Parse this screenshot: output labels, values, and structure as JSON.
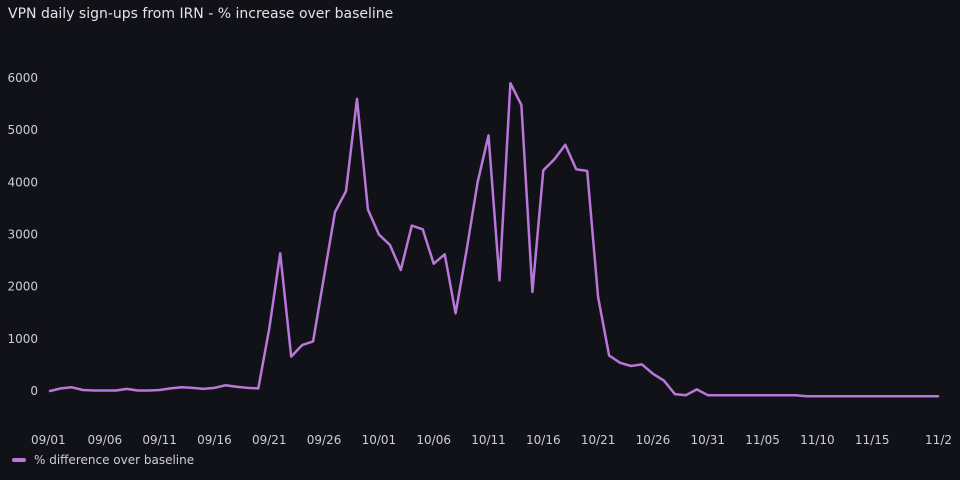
{
  "panel": {
    "title": "VPN daily sign-ups from IRN - % increase over baseline"
  },
  "colors": {
    "background": "#111217",
    "series": "#b877d9",
    "text": "#ccccdc"
  },
  "chart_data": {
    "type": "line",
    "title": "VPN daily sign-ups from IRN - % increase over baseline",
    "xlabel": "",
    "ylabel": "",
    "grid": false,
    "legend_position": "bottom-left",
    "ylim": [
      -100,
      6500
    ],
    "yticks": [
      0,
      1000,
      2000,
      3000,
      4000,
      5000,
      6000
    ],
    "xtick_labels": [
      "09/01",
      "09/06",
      "09/11",
      "09/16",
      "09/21",
      "09/26",
      "10/01",
      "10/06",
      "10/11",
      "10/16",
      "10/21",
      "10/26",
      "10/31",
      "11/05",
      "11/10",
      "11/15",
      "11/2"
    ],
    "x": [
      "09/01",
      "09/02",
      "09/03",
      "09/04",
      "09/05",
      "09/06",
      "09/07",
      "09/08",
      "09/09",
      "09/10",
      "09/11",
      "09/12",
      "09/13",
      "09/14",
      "09/15",
      "09/16",
      "09/17",
      "09/18",
      "09/19",
      "09/20",
      "09/21",
      "09/22",
      "09/23",
      "09/24",
      "09/25",
      "09/26",
      "09/27",
      "09/28",
      "09/29",
      "09/30",
      "10/01",
      "10/02",
      "10/03",
      "10/04",
      "10/05",
      "10/06",
      "10/07",
      "10/08",
      "10/09",
      "10/10",
      "10/11",
      "10/12",
      "10/13",
      "10/14",
      "10/15",
      "10/16",
      "10/17",
      "10/18",
      "10/19",
      "10/20",
      "10/21",
      "10/22",
      "10/23",
      "10/24",
      "10/25",
      "10/26",
      "10/27",
      "10/28",
      "10/29",
      "10/30",
      "10/31",
      "11/01",
      "11/02",
      "11/03",
      "11/04",
      "11/05",
      "11/06",
      "11/07",
      "11/08",
      "11/09",
      "11/10",
      "11/11",
      "11/12",
      "11/13",
      "11/14",
      "11/15",
      "11/16",
      "11/17",
      "11/18",
      "11/19",
      "11/20",
      "11/21"
    ],
    "series": [
      {
        "name": "% difference over baseline",
        "values": [
          0,
          50,
          70,
          20,
          10,
          10,
          10,
          40,
          10,
          10,
          20,
          50,
          70,
          60,
          40,
          60,
          110,
          80,
          60,
          50,
          1200,
          2640,
          660,
          880,
          950,
          2200,
          3430,
          3830,
          5600,
          3480,
          3000,
          2800,
          2320,
          3170,
          3100,
          2440,
          2620,
          1490,
          2700,
          4000,
          4900,
          2120,
          5900,
          5480,
          1900,
          4230,
          4440,
          4720,
          4250,
          4220,
          1800,
          680,
          540,
          480,
          510,
          330,
          200,
          -60,
          -80,
          30,
          -80,
          -80,
          -80,
          -80,
          -80,
          -80,
          -80,
          -80,
          -80,
          -100,
          -100,
          -100,
          -100,
          -100,
          -100,
          -100,
          -100,
          -100,
          -100,
          -100,
          -100,
          -100
        ]
      }
    ]
  }
}
